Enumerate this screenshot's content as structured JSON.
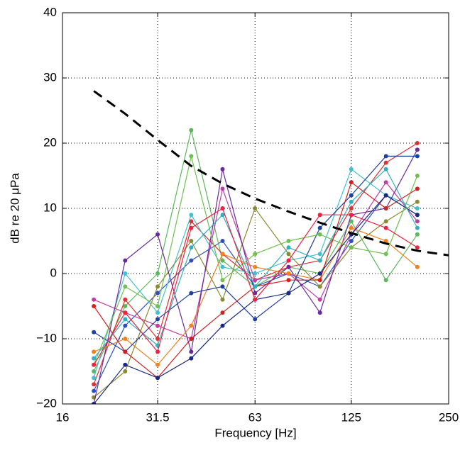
{
  "chart_data": {
    "type": "line",
    "xlabel": "Frequency [Hz]",
    "ylabel": "dB re 20 μPa",
    "xscale": "log",
    "grid": true,
    "xlim": [
      16,
      250
    ],
    "xticks": [
      16,
      31.5,
      63,
      125,
      250
    ],
    "ylim": [
      -20,
      40
    ],
    "yticks": [
      {
        "value": -20,
        "label": "−20"
      },
      {
        "value": -10,
        "label": "−10"
      },
      0,
      10,
      20,
      30,
      40
    ],
    "x": [
      20,
      25,
      31.5,
      40,
      50,
      63,
      80,
      100,
      125,
      160,
      200,
      250
    ],
    "series": [
      {
        "color": "#3050c0",
        "values": [
          -18,
          -8,
          -3,
          2,
          5,
          -2,
          0,
          -2,
          5,
          12,
          9,
          null
        ]
      },
      {
        "color": "#5cb85c",
        "values": [
          -15,
          -5,
          0,
          22,
          2,
          -2,
          1,
          0,
          8,
          -1,
          6,
          null
        ]
      },
      {
        "color": "#e03030",
        "values": [
          -17,
          -4,
          -10,
          8,
          3,
          -1,
          1,
          2,
          10,
          17,
          20,
          null
        ]
      },
      {
        "color": "#40c0d0",
        "values": [
          -16,
          0,
          -6,
          9,
          1,
          0,
          2,
          3,
          16,
          12,
          10,
          null
        ]
      },
      {
        "color": "#c040a0",
        "values": [
          -4,
          -6,
          -8,
          -10,
          13,
          -1,
          0,
          -4,
          6,
          14,
          8,
          null
        ]
      },
      {
        "color": "#8a8a30",
        "values": [
          -19,
          -15,
          -2,
          5,
          -4,
          10,
          3,
          -2,
          4,
          8,
          11,
          null
        ]
      },
      {
        "color": "#6a2a9a",
        "values": [
          -20,
          2,
          6,
          -12,
          16,
          -3,
          1,
          -6,
          9,
          10,
          19,
          null
        ]
      },
      {
        "color": "#f08020",
        "values": [
          -12,
          -10,
          -14,
          -8,
          3,
          1,
          0,
          -1,
          7,
          5,
          1,
          null
        ]
      },
      {
        "color": "#2040a0",
        "values": [
          -9,
          -12,
          -7,
          -3,
          -2,
          -7,
          -3,
          7,
          12,
          18,
          18,
          null
        ]
      },
      {
        "color": "#70c050",
        "values": [
          -14,
          -2,
          -5,
          18,
          -1,
          3,
          5,
          6,
          4,
          3,
          15,
          null
        ]
      },
      {
        "color": "#d02020",
        "values": [
          -5,
          -12,
          -16,
          -10,
          -6,
          -2,
          -1,
          -1,
          14,
          10,
          13,
          null
        ]
      },
      {
        "color": "#1a2a80",
        "values": [
          -20,
          -14,
          -16,
          -13,
          -8,
          -4,
          -3,
          0,
          6,
          12,
          9,
          null
        ]
      },
      {
        "color": "#30b0c0",
        "values": [
          -13,
          -7,
          -11,
          4,
          9,
          -2,
          4,
          2,
          11,
          16,
          7,
          null
        ]
      },
      {
        "color": "#f02040",
        "values": [
          -14,
          -6,
          -12,
          7,
          10,
          -4,
          2,
          9,
          9,
          7,
          4,
          null
        ]
      },
      {
        "color": "#000000",
        "style": "dashed",
        "values": [
          28,
          24.5,
          20.5,
          16.5,
          13.8,
          11.5,
          9.5,
          7.8,
          6.2,
          4.6,
          3.5,
          2.8
        ]
      }
    ]
  }
}
